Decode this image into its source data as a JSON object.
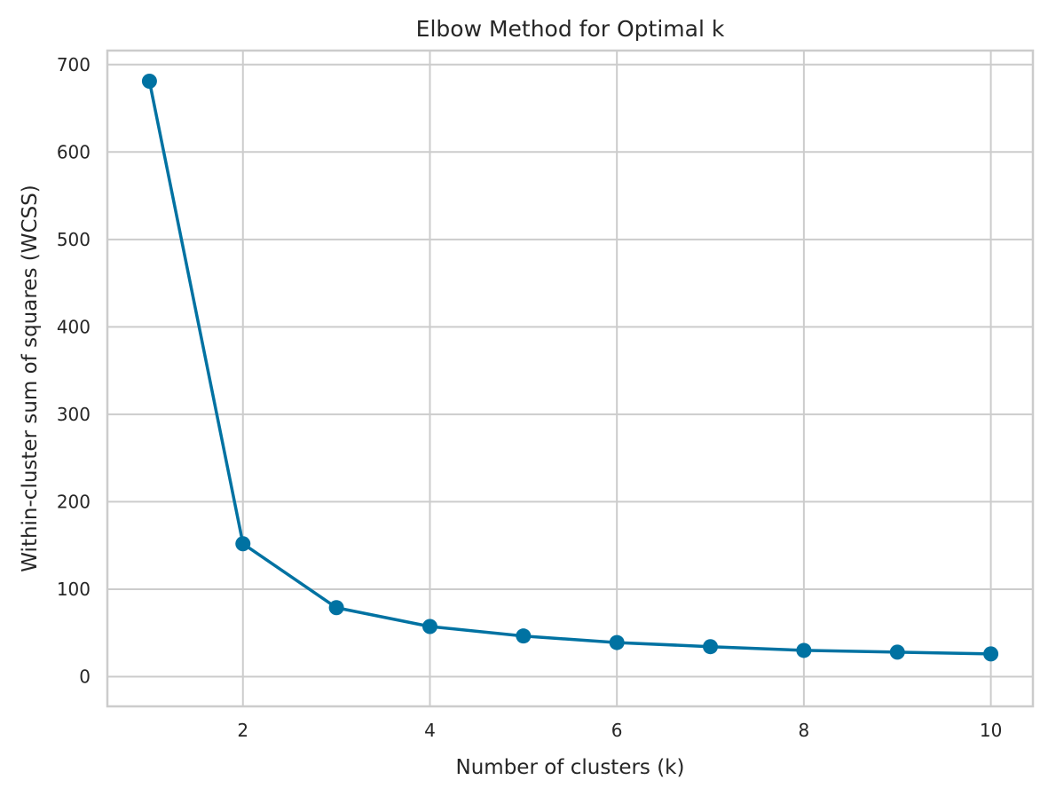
{
  "chart_data": {
    "type": "line",
    "title": "Elbow Method for Optimal k",
    "xlabel": "Number of clusters (k)",
    "ylabel": "Within-cluster sum of squares (WCSS)",
    "x": [
      1,
      2,
      3,
      4,
      5,
      6,
      7,
      8,
      9,
      10
    ],
    "series": [
      {
        "values": [
          681,
          152,
          78.9,
          57.3,
          46.5,
          39.0,
          34.3,
          30.0,
          28.0,
          26.0
        ]
      }
    ],
    "xlim": [
      0.55,
      10.45
    ],
    "ylim": [
      -34,
      716
    ],
    "xticks": [
      2,
      4,
      6,
      8,
      10
    ],
    "yticks": [
      0,
      100,
      200,
      300,
      400,
      500,
      600,
      700
    ],
    "marker": "circle",
    "grid": true,
    "line_color": "#0072a2"
  }
}
